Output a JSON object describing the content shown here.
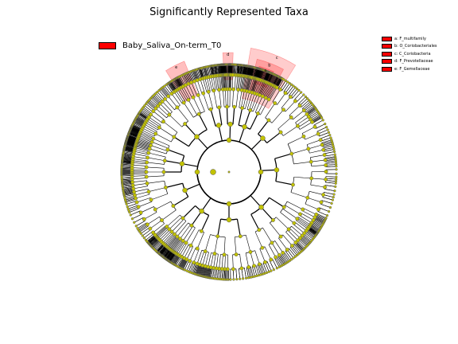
{
  "figure": {
    "title": "Significantly Represented Taxa"
  },
  "colors": {
    "enriched": "#ff0000",
    "node_default": "#c2c200",
    "branch": "#000000",
    "highlight": "#ff0000"
  },
  "groups": [
    {
      "label": "Baby_Saliva_On-term_T0",
      "color": "#ff0000"
    }
  ],
  "taxa": [
    {
      "key": "a",
      "label": "a: F_multifamily",
      "color": "#ff0000"
    },
    {
      "key": "b",
      "label": "b: O_Coriobacteriales",
      "color": "#ff0000"
    },
    {
      "key": "c",
      "label": "c: C_Coriobacteria",
      "color": "#ff0000"
    },
    {
      "key": "d",
      "label": "d: F_Prevotellaceae",
      "color": "#ff0000"
    },
    {
      "key": "e",
      "label": "e: F_Gemellaceae",
      "color": "#ff0000"
    }
  ]
}
